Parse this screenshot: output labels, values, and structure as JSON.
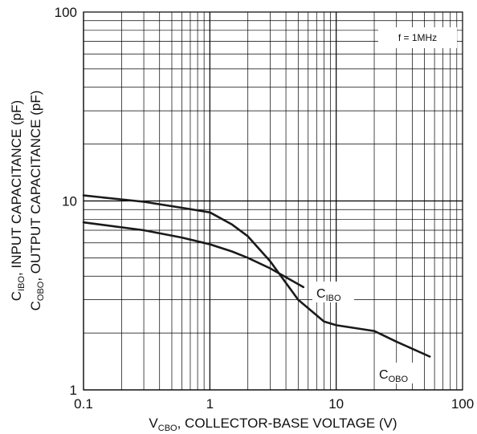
{
  "chart_data": {
    "type": "line",
    "x_scale": "log",
    "y_scale": "log",
    "xlim": [
      0.1,
      100
    ],
    "ylim": [
      1,
      100
    ],
    "x_ticks": [
      0.1,
      1,
      10,
      100
    ],
    "x_tick_labels": [
      "0.1",
      "1",
      "10",
      "100"
    ],
    "y_ticks": [
      1,
      10,
      100
    ],
    "y_tick_labels": [
      "1",
      "10",
      "100"
    ],
    "grid": true,
    "xlabel": {
      "main": "V",
      "sub": "CBO",
      "rest": ", COLLECTOR-BASE VOLTAGE (V)"
    },
    "ylabel_line1": {
      "main": "C",
      "sub": "IBO",
      "rest": ", INPUT CAPACITANCE (pF)"
    },
    "ylabel_line2": {
      "main": "C",
      "sub": "OBO",
      "rest": ", OUTPUT CAPACITANCE (pF)"
    },
    "annotation": "f = 1MHz",
    "series": [
      {
        "name": "CIBO",
        "label_main": "C",
        "label_sub": "IBO",
        "x": [
          0.1,
          0.3,
          0.6,
          1.0,
          1.5,
          2.0,
          3.0,
          5.5
        ],
        "y": [
          7.7,
          7.0,
          6.4,
          5.9,
          5.4,
          5.0,
          4.4,
          3.5
        ]
      },
      {
        "name": "COBO",
        "label_main": "C",
        "label_sub": "OBO",
        "x": [
          0.1,
          0.3,
          0.6,
          1.0,
          1.5,
          2.0,
          3.0,
          5.0,
          8.0,
          10,
          20,
          30,
          55
        ],
        "y": [
          10.7,
          9.9,
          9.2,
          8.7,
          7.5,
          6.5,
          4.8,
          3.0,
          2.3,
          2.2,
          2.05,
          1.8,
          1.5
        ]
      }
    ]
  }
}
